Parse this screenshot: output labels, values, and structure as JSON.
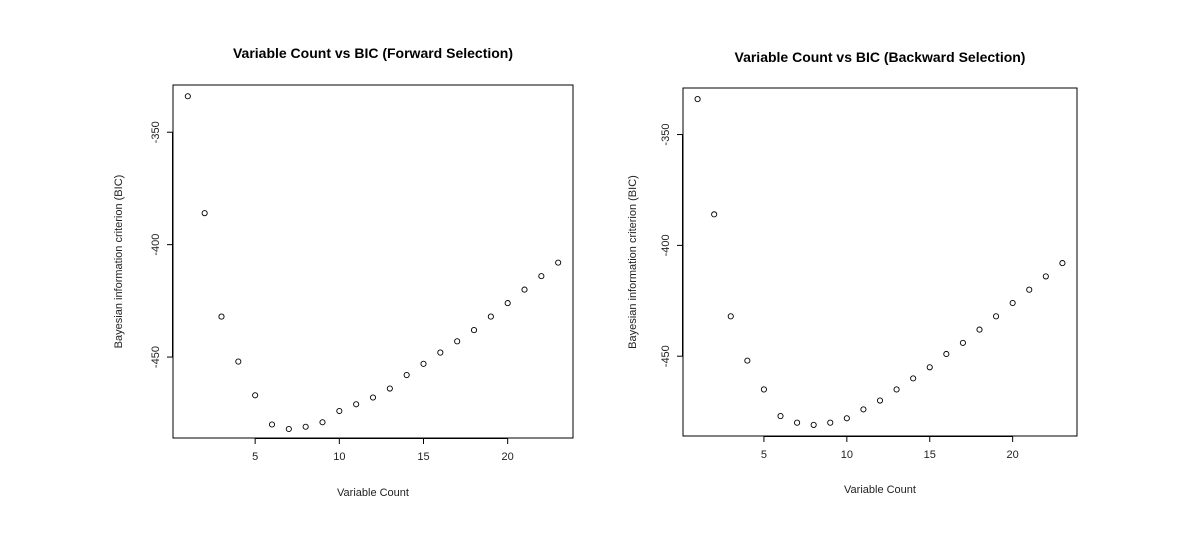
{
  "chart_data": [
    {
      "type": "scatter",
      "title": "Variable Count vs BIC (Forward Selection)",
      "xlabel": "Variable Count",
      "ylabel": "Bayesian information criterion (BIC)",
      "xlim": [
        0.12,
        23.88
      ],
      "ylim": [
        -486,
        -329
      ],
      "x_ticks": [
        5,
        10,
        15,
        20
      ],
      "y_ticks": [
        -350,
        -400,
        -450
      ],
      "x": [
        1,
        2,
        3,
        4,
        5,
        6,
        7,
        8,
        9,
        10,
        11,
        12,
        13,
        14,
        15,
        16,
        17,
        18,
        19,
        20,
        21,
        22,
        23
      ],
      "y": [
        -334,
        -386,
        -432,
        -452,
        -467,
        -480,
        -482,
        -481,
        -479,
        -474,
        -471,
        -468,
        -464,
        -458,
        -453,
        -448,
        -443,
        -438,
        -432,
        -426,
        -420,
        -414,
        -408
      ],
      "grid": false,
      "legend": "none"
    },
    {
      "type": "scatter",
      "title": "Variable Count vs BIC (Backward Selection)",
      "xlabel": "Variable Count",
      "ylabel": "Bayesian information criterion (BIC)",
      "xlim": [
        0.12,
        23.88
      ],
      "ylim": [
        -486,
        -329
      ],
      "x_ticks": [
        5,
        10,
        15,
        20
      ],
      "y_ticks": [
        -350,
        -400,
        -450
      ],
      "x": [
        1,
        2,
        3,
        4,
        5,
        6,
        7,
        8,
        9,
        10,
        11,
        12,
        13,
        14,
        15,
        16,
        17,
        18,
        19,
        20,
        21,
        22,
        23
      ],
      "y": [
        -334,
        -386,
        -432,
        -452,
        -465,
        -477,
        -480,
        -481,
        -480,
        -478,
        -474,
        -470,
        -465,
        -460,
        -455,
        -449,
        -444,
        -438,
        -432,
        -426,
        -420,
        -414,
        -408
      ],
      "grid": false,
      "legend": "none"
    }
  ]
}
